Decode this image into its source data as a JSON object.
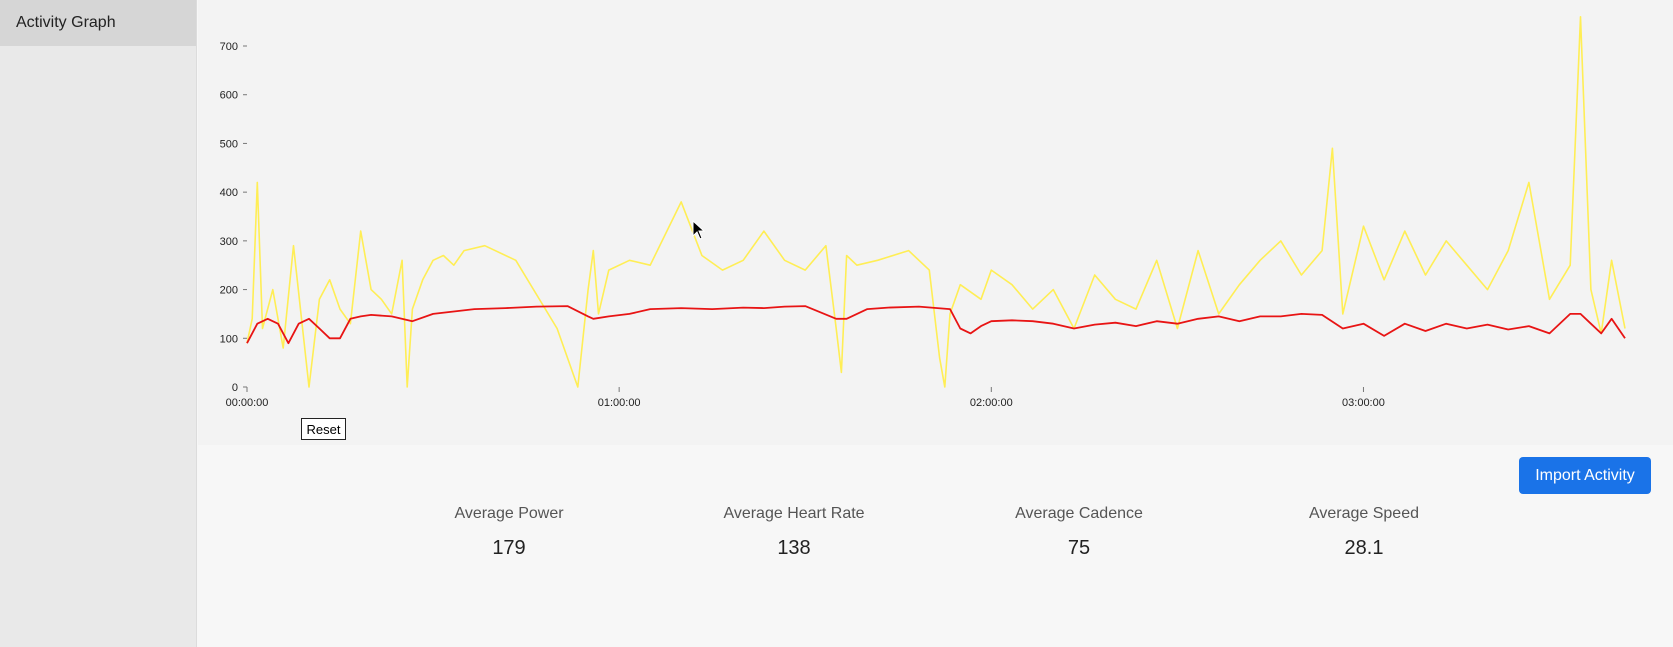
{
  "sidebar": {
    "items": [
      {
        "label": "Activity Graph"
      }
    ]
  },
  "graph": {
    "reset_label": "Reset",
    "colors": {
      "power": "#ffee55",
      "heart_rate": "#e81414"
    }
  },
  "toolbar": {
    "import_label": "Import Activity"
  },
  "stats": [
    {
      "label": "Average Power",
      "value": "179"
    },
    {
      "label": "Average Heart Rate",
      "value": "138"
    },
    {
      "label": "Average Cadence",
      "value": "75"
    },
    {
      "label": "Average Speed",
      "value": "28.1"
    }
  ],
  "chart_data": {
    "type": "line",
    "x_unit": "seconds",
    "x_range": [
      0,
      13330
    ],
    "ylim": [
      0,
      700
    ],
    "y_ticks": [
      0,
      100,
      200,
      300,
      400,
      500,
      600,
      700
    ],
    "x_ticks": [
      "00:00:00",
      "01:00:00",
      "02:00:00",
      "03:00:00"
    ],
    "x_tick_values": [
      0,
      3600,
      7200,
      10800
    ],
    "series": [
      {
        "key": "power",
        "x": [
          0,
          50,
          100,
          150,
          250,
          350,
          450,
          600,
          700,
          800,
          900,
          1000,
          1100,
          1200,
          1300,
          1400,
          1500,
          1550,
          1600,
          1700,
          1800,
          1900,
          2000,
          2100,
          2300,
          2600,
          3000,
          3200,
          3300,
          3350,
          3400,
          3500,
          3700,
          3900,
          4200,
          4400,
          4600,
          4800,
          5000,
          5200,
          5400,
          5600,
          5700,
          5750,
          5800,
          5900,
          6100,
          6400,
          6600,
          6700,
          6750,
          6800,
          6900,
          7100,
          7200,
          7400,
          7600,
          7800,
          8000,
          8200,
          8400,
          8600,
          8800,
          9000,
          9200,
          9400,
          9600,
          9800,
          10000,
          10200,
          10400,
          10500,
          10600,
          10800,
          11000,
          11200,
          11400,
          11600,
          11800,
          12000,
          12200,
          12400,
          12600,
          12800,
          12900,
          13000,
          13100,
          13200,
          13330
        ],
        "y": [
          90,
          140,
          420,
          120,
          200,
          80,
          290,
          0,
          180,
          220,
          160,
          130,
          320,
          200,
          180,
          150,
          260,
          0,
          160,
          220,
          260,
          270,
          250,
          280,
          290,
          260,
          120,
          0,
          200,
          280,
          150,
          240,
          260,
          250,
          380,
          270,
          240,
          260,
          320,
          260,
          240,
          290,
          120,
          30,
          270,
          250,
          260,
          280,
          240,
          60,
          0,
          150,
          210,
          180,
          240,
          210,
          160,
          200,
          120,
          230,
          180,
          160,
          260,
          120,
          280,
          150,
          210,
          260,
          300,
          230,
          280,
          490,
          150,
          330,
          220,
          320,
          230,
          300,
          250,
          200,
          280,
          420,
          180,
          250,
          760,
          200,
          110,
          260,
          120
        ]
      },
      {
        "key": "heart_rate",
        "x": [
          0,
          100,
          200,
          300,
          400,
          500,
          600,
          700,
          800,
          900,
          1000,
          1100,
          1200,
          1400,
          1600,
          1800,
          2000,
          2200,
          2500,
          2800,
          3100,
          3300,
          3350,
          3500,
          3700,
          3900,
          4200,
          4500,
          4800,
          5000,
          5200,
          5400,
          5700,
          5800,
          6000,
          6200,
          6500,
          6800,
          6900,
          7000,
          7100,
          7200,
          7400,
          7600,
          7800,
          8000,
          8200,
          8400,
          8600,
          8800,
          9000,
          9200,
          9400,
          9600,
          9800,
          10000,
          10200,
          10400,
          10600,
          10800,
          11000,
          11200,
          11400,
          11600,
          11800,
          12000,
          12200,
          12400,
          12600,
          12800,
          12900,
          13000,
          13100,
          13200,
          13330
        ],
        "y": [
          90,
          130,
          140,
          130,
          90,
          130,
          140,
          120,
          100,
          100,
          140,
          145,
          148,
          145,
          135,
          150,
          155,
          160,
          162,
          165,
          166,
          145,
          140,
          145,
          150,
          160,
          162,
          160,
          163,
          162,
          165,
          166,
          140,
          140,
          160,
          163,
          165,
          160,
          120,
          110,
          125,
          135,
          137,
          135,
          130,
          120,
          128,
          132,
          125,
          135,
          130,
          140,
          145,
          135,
          145,
          145,
          150,
          148,
          120,
          130,
          105,
          130,
          115,
          130,
          120,
          128,
          118,
          125,
          110,
          150,
          150,
          130,
          110,
          140,
          100
        ]
      }
    ]
  }
}
